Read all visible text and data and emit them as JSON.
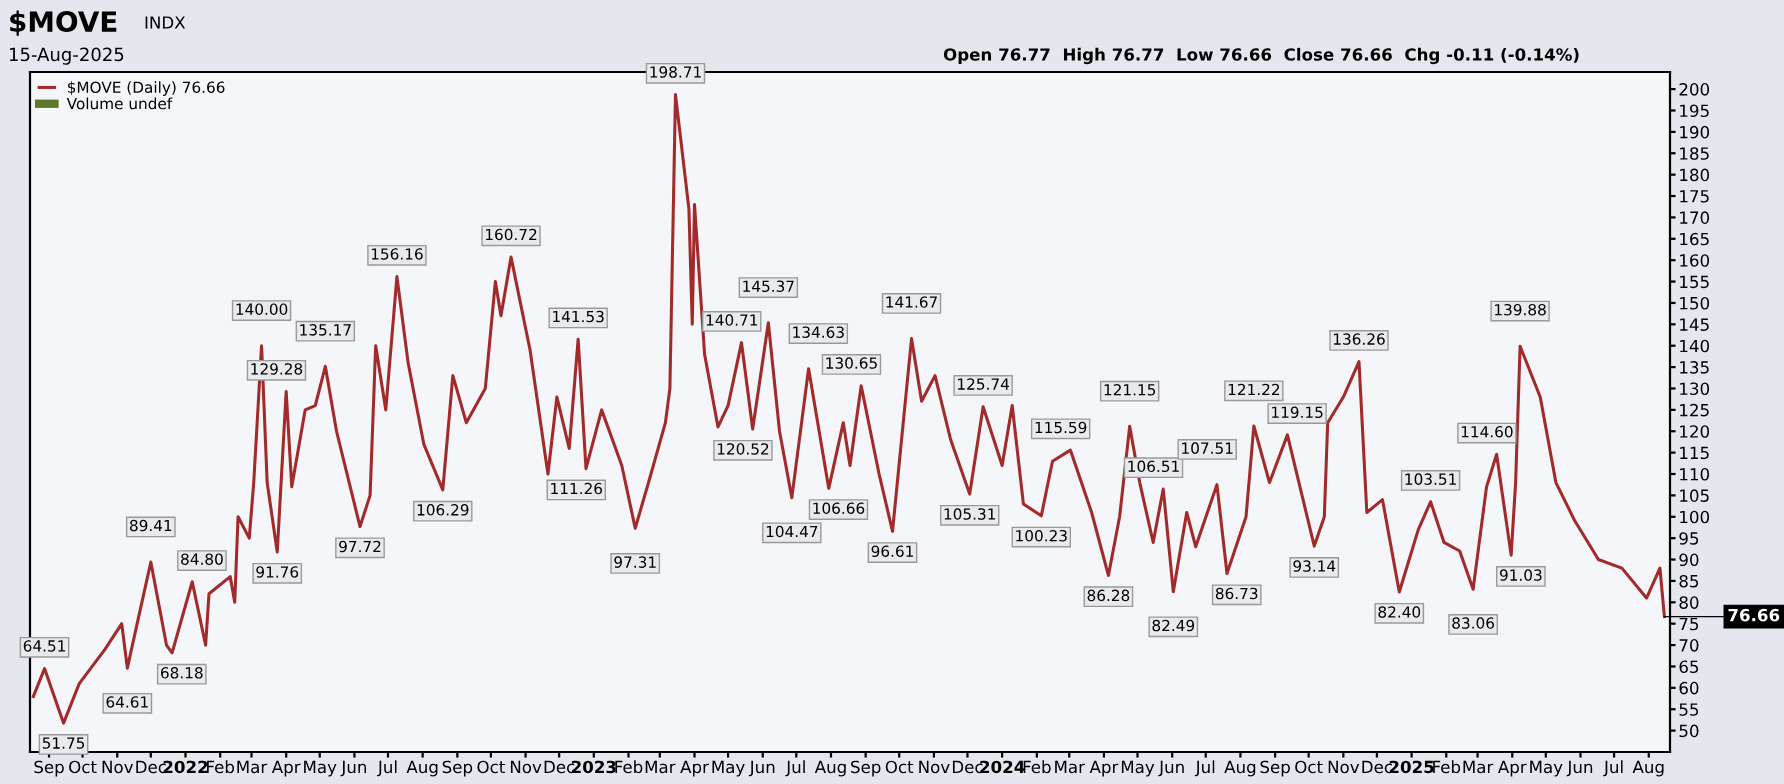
{
  "chart_data": {
    "type": "line",
    "title": "$MOVE",
    "subtitle": "15-Aug-2025",
    "annotations": [
      "INDX",
      "Open 76.77  High 76.77  Low 76.66  Close 76.66  Chg -0.11 (-0.14%)",
      "Volume undef",
      {
        "text": "76.66",
        "x": "2025-08-15",
        "y": 76.66
      }
    ],
    "legend": "top left",
    "grid": false,
    "marker": "none",
    "line_style": "solid",
    "xlim": [
      "2021-08-15",
      "2025-08-20"
    ],
    "ylim": [
      45,
      204
    ],
    "yticks": [
      50,
      55,
      60,
      65,
      70,
      75,
      80,
      85,
      90,
      95,
      100,
      105,
      110,
      115,
      120,
      125,
      130,
      135,
      140,
      145,
      150,
      155,
      160,
      165,
      170,
      175,
      180,
      185,
      190,
      195,
      200
    ],
    "xticks": [
      {
        "value": "2021-09-01",
        "label": "Sep"
      },
      {
        "value": "2021-10-01",
        "label": "Oct"
      },
      {
        "value": "2021-11-01",
        "label": "Nov"
      },
      {
        "value": "2021-12-01",
        "label": "Dec"
      },
      {
        "value": "2022-01-01",
        "label": "2022"
      },
      {
        "value": "2022-02-01",
        "label": "Feb"
      },
      {
        "value": "2022-03-01",
        "label": "Mar"
      },
      {
        "value": "2022-04-01",
        "label": "Apr"
      },
      {
        "value": "2022-05-01",
        "label": "May"
      },
      {
        "value": "2022-06-01",
        "label": "Jun"
      },
      {
        "value": "2022-07-01",
        "label": "Jul"
      },
      {
        "value": "2022-08-01",
        "label": "Aug"
      },
      {
        "value": "2022-09-01",
        "label": "Sep"
      },
      {
        "value": "2022-10-01",
        "label": "Oct"
      },
      {
        "value": "2022-11-01",
        "label": "Nov"
      },
      {
        "value": "2022-12-01",
        "label": "Dec"
      },
      {
        "value": "2023-01-01",
        "label": "2023"
      },
      {
        "value": "2023-02-01",
        "label": "Feb"
      },
      {
        "value": "2023-03-01",
        "label": "Mar"
      },
      {
        "value": "2023-04-01",
        "label": "Apr"
      },
      {
        "value": "2023-05-01",
        "label": "May"
      },
      {
        "value": "2023-06-01",
        "label": "Jun"
      },
      {
        "value": "2023-07-01",
        "label": "Jul"
      },
      {
        "value": "2023-08-01",
        "label": "Aug"
      },
      {
        "value": "2023-09-01",
        "label": "Sep"
      },
      {
        "value": "2023-10-01",
        "label": "Oct"
      },
      {
        "value": "2023-11-01",
        "label": "Nov"
      },
      {
        "value": "2023-12-01",
        "label": "Dec"
      },
      {
        "value": "2024-01-01",
        "label": "2024"
      },
      {
        "value": "2024-02-01",
        "label": "Feb"
      },
      {
        "value": "2024-03-01",
        "label": "Mar"
      },
      {
        "value": "2024-04-01",
        "label": "Apr"
      },
      {
        "value": "2024-05-01",
        "label": "May"
      },
      {
        "value": "2024-06-01",
        "label": "Jun"
      },
      {
        "value": "2024-07-01",
        "label": "Jul"
      },
      {
        "value": "2024-08-01",
        "label": "Aug"
      },
      {
        "value": "2024-09-01",
        "label": "Sep"
      },
      {
        "value": "2024-10-01",
        "label": "Oct"
      },
      {
        "value": "2024-11-01",
        "label": "Nov"
      },
      {
        "value": "2024-12-01",
        "label": "Dec"
      },
      {
        "value": "2025-01-01",
        "label": "2025"
      },
      {
        "value": "2025-02-01",
        "label": "Feb"
      },
      {
        "value": "2025-03-01",
        "label": "Mar"
      },
      {
        "value": "2025-04-01",
        "label": "Apr"
      },
      {
        "value": "2025-05-01",
        "label": "May"
      },
      {
        "value": "2025-06-01",
        "label": "Jun"
      },
      {
        "value": "2025-07-01",
        "label": "Jul"
      },
      {
        "value": "2025-08-01",
        "label": "Aug"
      }
    ],
    "series": [
      {
        "name": "$MOVE (Daily) 76.66",
        "color": "#a32a2a",
        "x": [
          "2021-08-18",
          "2021-08-28",
          "2021-09-14",
          "2021-09-28",
          "2021-10-21",
          "2021-11-05",
          "2021-11-10",
          "2021-11-23",
          "2021-12-01",
          "2021-12-15",
          "2021-12-20",
          "2022-01-07",
          "2022-01-19",
          "2022-01-22",
          "2022-02-10",
          "2022-02-14",
          "2022-02-17",
          "2022-02-27",
          "2022-03-03",
          "2022-03-10",
          "2022-03-15",
          "2022-03-24",
          "2022-04-01",
          "2022-04-06",
          "2022-04-18",
          "2022-04-27",
          "2022-05-06",
          "2022-05-16",
          "2022-06-06",
          "2022-06-15",
          "2022-06-20",
          "2022-06-29",
          "2022-07-09",
          "2022-07-19",
          "2022-08-02",
          "2022-08-19",
          "2022-08-28",
          "2022-09-09",
          "2022-09-26",
          "2022-10-05",
          "2022-10-10",
          "2022-10-19",
          "2022-11-05",
          "2022-11-21",
          "2022-11-29",
          "2022-12-10",
          "2022-12-18",
          "2022-12-25",
          "2023-01-08",
          "2023-01-26",
          "2023-02-07",
          "2023-02-20",
          "2023-03-06",
          "2023-03-10",
          "2023-03-15",
          "2023-03-27",
          "2023-03-30",
          "2023-04-01",
          "2023-04-10",
          "2023-04-22",
          "2023-05-01",
          "2023-05-13",
          "2023-05-23",
          "2023-06-06",
          "2023-06-16",
          "2023-06-27",
          "2023-07-12",
          "2023-07-30",
          "2023-08-12",
          "2023-08-18",
          "2023-08-28",
          "2023-09-13",
          "2023-09-25",
          "2023-10-12",
          "2023-10-21",
          "2023-11-02",
          "2023-11-16",
          "2023-12-03",
          "2023-12-15",
          "2024-01-01",
          "2024-01-10",
          "2024-01-20",
          "2024-02-05",
          "2024-02-15",
          "2024-03-02",
          "2024-03-21",
          "2024-04-05",
          "2024-04-15",
          "2024-04-24",
          "2024-05-03",
          "2024-05-15",
          "2024-05-24",
          "2024-06-02",
          "2024-06-14",
          "2024-06-22",
          "2024-07-11",
          "2024-07-20",
          "2024-08-06",
          "2024-08-13",
          "2024-08-27",
          "2024-09-12",
          "2024-10-06",
          "2024-10-15",
          "2024-10-18",
          "2024-11-01",
          "2024-11-15",
          "2024-11-22",
          "2024-12-06",
          "2024-12-21",
          "2025-01-07",
          "2025-01-18",
          "2025-01-30",
          "2025-02-13",
          "2025-02-25",
          "2025-03-09",
          "2025-03-18",
          "2025-03-31",
          "2025-04-04",
          "2025-04-08",
          "2025-04-26",
          "2025-05-10",
          "2025-05-27",
          "2025-06-17",
          "2025-07-08",
          "2025-07-30",
          "2025-08-11",
          "2025-08-15"
        ],
        "values": [
          58,
          64.51,
          51.75,
          61,
          69,
          75,
          64.61,
          80,
          89.41,
          70,
          68.18,
          84.8,
          70,
          82,
          86,
          80,
          100,
          95,
          108,
          140.0,
          108,
          91.76,
          129.28,
          107,
          125,
          126,
          135.17,
          120,
          97.72,
          105,
          140,
          125,
          156.16,
          136,
          117,
          106.29,
          133,
          122,
          130,
          155,
          147,
          160.72,
          139,
          110,
          128,
          116,
          141.53,
          111.26,
          125,
          112,
          97.31,
          109,
          122,
          130,
          198.71,
          172,
          145,
          173,
          138,
          121,
          126,
          140.71,
          120.52,
          145.37,
          120,
          104.47,
          134.63,
          106.66,
          122,
          112,
          130.65,
          110,
          96.61,
          141.67,
          127,
          133,
          118,
          105.31,
          125.74,
          112,
          126,
          103,
          100.23,
          113,
          115.59,
          101,
          86.28,
          100,
          121.15,
          108,
          94,
          106.51,
          82.49,
          101,
          93,
          107.51,
          86.73,
          100,
          121.22,
          108,
          119.15,
          93.14,
          100,
          122,
          128,
          136.26,
          101,
          104,
          82.4,
          97,
          103.51,
          94,
          92,
          83.06,
          107,
          114.6,
          91.03,
          108,
          139.88,
          128,
          108,
          99,
          90,
          88,
          81,
          88,
          76.66
        ],
        "value_labels": [
          null,
          "64.51",
          "51.75",
          null,
          null,
          null,
          "64.61",
          null,
          "89.41",
          null,
          "68.18",
          "84.80",
          null,
          null,
          null,
          null,
          null,
          null,
          null,
          "140.00",
          null,
          "91.76",
          "129.28",
          null,
          null,
          null,
          "135.17",
          null,
          "97.72",
          null,
          null,
          null,
          "156.16",
          null,
          null,
          "106.29",
          null,
          null,
          null,
          null,
          null,
          "160.72",
          null,
          null,
          null,
          null,
          "141.53",
          "111.26",
          null,
          null,
          "97.31",
          null,
          null,
          null,
          "198.71",
          null,
          null,
          null,
          null,
          null,
          null,
          "140.71",
          "120.52",
          "145.37",
          null,
          "104.47",
          "134.63",
          "106.66",
          null,
          null,
          "130.65",
          null,
          "96.61",
          "141.67",
          null,
          null,
          null,
          "105.31",
          "125.74",
          null,
          null,
          null,
          "100.23",
          null,
          "115.59",
          null,
          "86.28",
          null,
          "121.15",
          null,
          null,
          "106.51",
          "82.49",
          null,
          null,
          "107.51",
          "86.73",
          null,
          "121.22",
          null,
          "119.15",
          "93.14",
          null,
          null,
          null,
          "136.26",
          null,
          null,
          "82.40",
          null,
          "103.51",
          null,
          null,
          "83.06",
          null,
          "114.60",
          "91.03",
          null,
          "139.88",
          null,
          null,
          null,
          null,
          null,
          null,
          null,
          null
        ]
      }
    ]
  }
}
